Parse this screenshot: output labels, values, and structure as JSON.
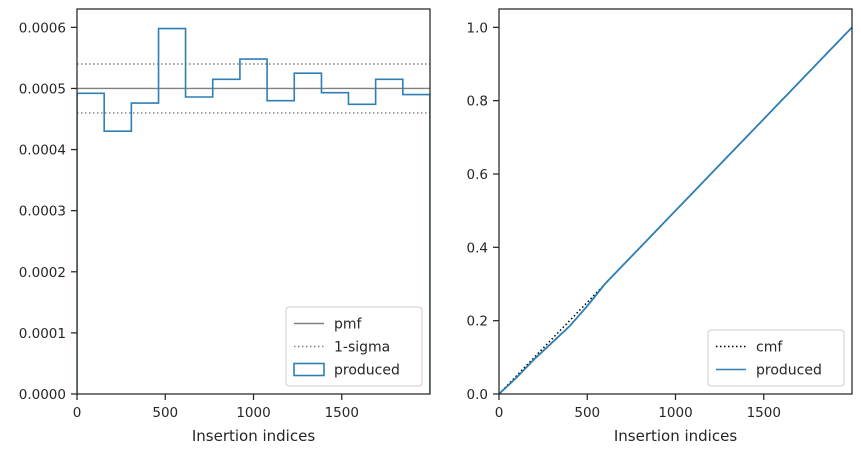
{
  "chart_data": [
    {
      "type": "histogram",
      "title": "",
      "xlabel": "Insertion indices",
      "ylabel": "",
      "xlim": [
        0,
        2000
      ],
      "ylim": [
        0,
        0.00063
      ],
      "grid": false,
      "x_ticks": [
        0,
        500,
        1000,
        1500
      ],
      "x_tick_labels": [
        "0",
        "500",
        "1000",
        "1500"
      ],
      "y_ticks": [
        0,
        0.0001,
        0.0002,
        0.0003,
        0.0004,
        0.0005,
        0.0006
      ],
      "y_tick_labels": [
        "0.0000",
        "0.0001",
        "0.0002",
        "0.0003",
        "0.0004",
        "0.0005",
        "0.0006"
      ],
      "legend_position": "lower-right",
      "series": [
        {
          "name": "pmf",
          "kind": "hline",
          "color": "#808080",
          "style": "solid",
          "y": 0.0005
        },
        {
          "name": "1-sigma",
          "kind": "hlines",
          "color": "#808080",
          "style": "dotted",
          "y": [
            0.00046,
            0.00054
          ]
        },
        {
          "name": "produced",
          "kind": "step",
          "color": "#2f7fb5",
          "bin_edges": [
            0,
            154,
            308,
            462,
            615,
            769,
            923,
            1077,
            1231,
            1385,
            1538,
            1692,
            1846,
            2000
          ],
          "values": [
            0.000492,
            0.00043,
            0.000476,
            0.000598,
            0.000486,
            0.000515,
            0.000548,
            0.00048,
            0.000525,
            0.000493,
            0.000474,
            0.000515,
            0.00049
          ]
        }
      ]
    },
    {
      "type": "line",
      "title": "",
      "xlabel": "Insertion indices",
      "ylabel": "",
      "xlim": [
        0,
        2000
      ],
      "ylim": [
        0,
        1.05
      ],
      "grid": false,
      "x_ticks": [
        0,
        500,
        1000,
        1500
      ],
      "x_tick_labels": [
        "0",
        "500",
        "1000",
        "1500"
      ],
      "y_ticks": [
        0,
        0.2,
        0.4,
        0.6,
        0.8,
        1.0
      ],
      "y_tick_labels": [
        "0.0",
        "0.2",
        "0.4",
        "0.6",
        "0.8",
        "1.0"
      ],
      "legend_position": "lower-right",
      "series": [
        {
          "name": "cmf",
          "kind": "line",
          "color": "#000000",
          "style": "dotted",
          "x": [
            0,
            2000
          ],
          "y": [
            0,
            1.0
          ]
        },
        {
          "name": "produced",
          "kind": "line",
          "color": "#2f7fb5",
          "style": "solid",
          "x": [
            0,
            100,
            200,
            300,
            400,
            500,
            600,
            700,
            800,
            900,
            1000,
            1100,
            1200,
            1300,
            1400,
            1500,
            1600,
            1700,
            1800,
            1900,
            2000
          ],
          "y": [
            0,
            0.045,
            0.095,
            0.14,
            0.185,
            0.24,
            0.3,
            0.35,
            0.4,
            0.45,
            0.5,
            0.55,
            0.6,
            0.65,
            0.7,
            0.75,
            0.8,
            0.85,
            0.9,
            0.95,
            1.0
          ]
        }
      ]
    }
  ]
}
